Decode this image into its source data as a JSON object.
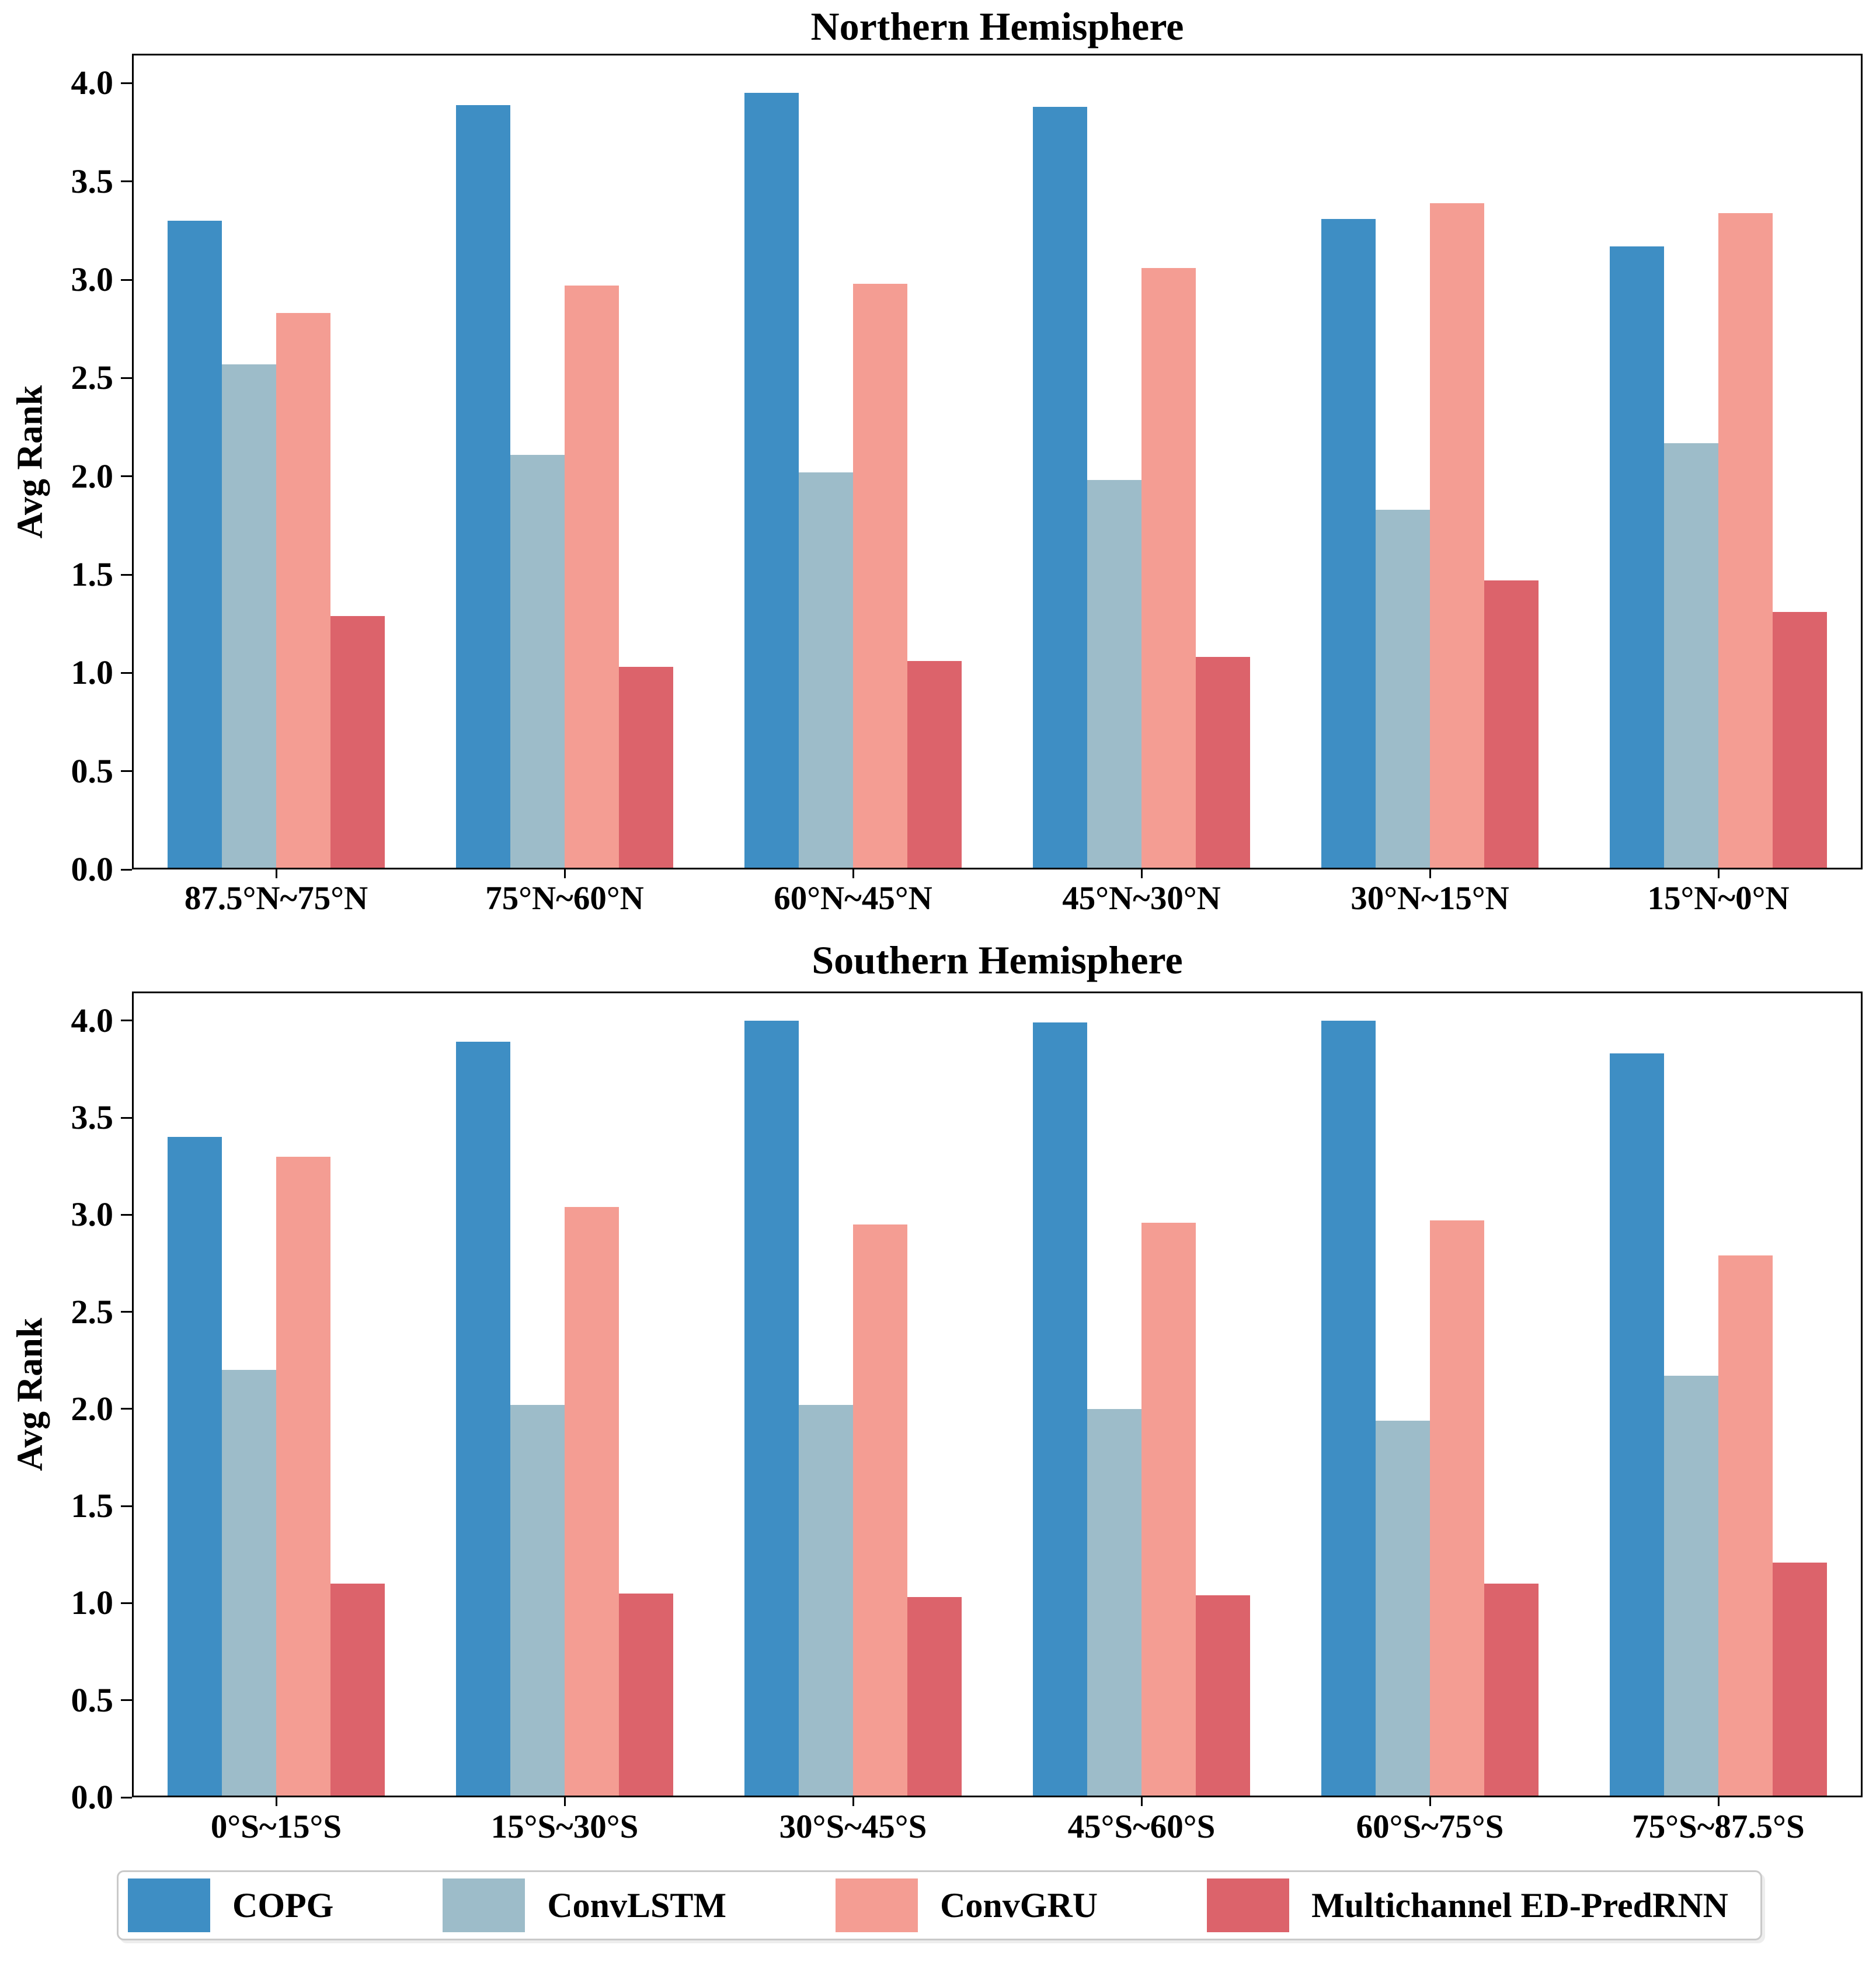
{
  "chart_data": [
    {
      "type": "bar",
      "title": "Northern Hemisphere",
      "ylabel": "Avg Rank",
      "xlabel": "",
      "categories": [
        "87.5°N~75°N",
        "75°N~60°N",
        "60°N~45°N",
        "45°N~30°N",
        "30°N~15°N",
        "15°N~0°N"
      ],
      "series": [
        {
          "name": "COPG",
          "color": "#3e8ec4",
          "values": [
            3.3,
            3.89,
            3.95,
            3.88,
            3.31,
            3.17
          ]
        },
        {
          "name": "ConvLSTM",
          "color": "#9dbcc9",
          "values": [
            2.57,
            2.11,
            2.02,
            1.98,
            1.83,
            2.17
          ]
        },
        {
          "name": "ConvGRU",
          "color": "#f49d93",
          "values": [
            2.83,
            2.97,
            2.98,
            3.06,
            3.39,
            3.34
          ]
        },
        {
          "name": "Multichannel ED-PredRNN",
          "color": "#dc636b",
          "values": [
            1.29,
            1.03,
            1.06,
            1.08,
            1.47,
            1.31
          ]
        }
      ],
      "ylim": [
        0,
        4.15
      ],
      "yticks": [
        "0.0",
        "0.5",
        "1.0",
        "1.5",
        "2.0",
        "2.5",
        "3.0",
        "3.5",
        "4.0"
      ],
      "grid": false,
      "legend_position": "shared bottom"
    },
    {
      "type": "bar",
      "title": "Southern Hemisphere",
      "ylabel": "Avg Rank",
      "xlabel": "",
      "categories": [
        "0°S~15°S",
        "15°S~30°S",
        "30°S~45°S",
        "45°S~60°S",
        "60°S~75°S",
        "75°S~87.5°S"
      ],
      "series": [
        {
          "name": "COPG",
          "color": "#3e8ec4",
          "values": [
            3.4,
            3.89,
            4.0,
            3.99,
            4.0,
            3.83
          ]
        },
        {
          "name": "ConvLSTM",
          "color": "#9dbcc9",
          "values": [
            2.2,
            2.02,
            2.02,
            2.0,
            1.94,
            2.17
          ]
        },
        {
          "name": "ConvGRU",
          "color": "#f49d93",
          "values": [
            3.3,
            3.04,
            2.95,
            2.96,
            2.97,
            2.79
          ]
        },
        {
          "name": "Multichannel ED-PredRNN",
          "color": "#dc636b",
          "values": [
            1.1,
            1.05,
            1.03,
            1.04,
            1.1,
            1.21
          ]
        }
      ],
      "ylim": [
        0,
        4.15
      ],
      "yticks": [
        "0.0",
        "0.5",
        "1.0",
        "1.5",
        "2.0",
        "2.5",
        "3.0",
        "3.5",
        "4.0"
      ],
      "grid": false,
      "legend_position": "shared bottom"
    }
  ]
}
